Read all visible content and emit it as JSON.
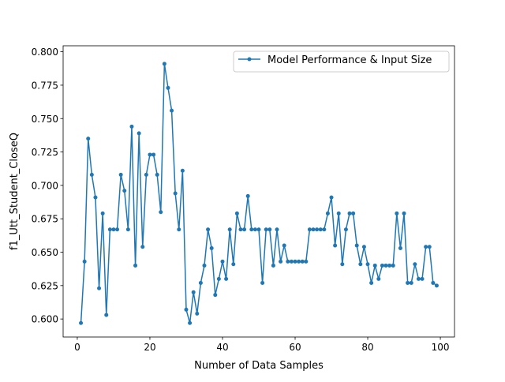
{
  "chart_data": {
    "type": "line",
    "title": "",
    "xlabel": "Number of Data Samples",
    "ylabel": "f1_Utt_Student_CloseQ",
    "xlim": [
      -3.9,
      103.9
    ],
    "ylim": [
      0.5865,
      0.8045
    ],
    "xticks": [
      0,
      20,
      40,
      60,
      80,
      100
    ],
    "xtick_labels": [
      "0",
      "20",
      "40",
      "60",
      "80",
      "100"
    ],
    "yticks": [
      0.6,
      0.625,
      0.65,
      0.675,
      0.7,
      0.725,
      0.75,
      0.775,
      0.8
    ],
    "ytick_labels": [
      "0.600",
      "0.625",
      "0.650",
      "0.675",
      "0.700",
      "0.725",
      "0.750",
      "0.775",
      "0.800"
    ],
    "grid": false,
    "legend_position": "top-right",
    "colors": {
      "series": "#1f77b4"
    },
    "series": [
      {
        "name": "Model Performance & Input Size",
        "x": [
          1,
          2,
          3,
          4,
          5,
          6,
          7,
          8,
          9,
          10,
          11,
          12,
          13,
          14,
          15,
          16,
          17,
          18,
          19,
          20,
          21,
          22,
          23,
          24,
          25,
          26,
          27,
          28,
          29,
          30,
          31,
          32,
          33,
          34,
          35,
          36,
          37,
          38,
          39,
          40,
          41,
          42,
          43,
          44,
          45,
          46,
          47,
          48,
          49,
          50,
          51,
          52,
          53,
          54,
          55,
          56,
          57,
          58,
          59,
          60,
          61,
          62,
          63,
          64,
          65,
          66,
          67,
          68,
          69,
          70,
          71,
          72,
          73,
          74,
          75,
          76,
          77,
          78,
          79,
          80,
          81,
          82,
          83,
          84,
          85,
          86,
          87,
          88,
          89,
          90,
          91,
          92,
          93,
          94,
          95,
          96,
          97,
          98,
          99
        ],
        "values": [
          0.597,
          0.643,
          0.735,
          0.708,
          0.691,
          0.623,
          0.679,
          0.603,
          0.667,
          0.667,
          0.667,
          0.708,
          0.696,
          0.667,
          0.744,
          0.64,
          0.739,
          0.654,
          0.708,
          0.723,
          0.723,
          0.708,
          0.68,
          0.791,
          0.773,
          0.756,
          0.694,
          0.667,
          0.711,
          0.607,
          0.597,
          0.62,
          0.604,
          0.627,
          0.64,
          0.667,
          0.653,
          0.618,
          0.63,
          0.643,
          0.63,
          0.667,
          0.641,
          0.679,
          0.667,
          0.667,
          0.692,
          0.667,
          0.667,
          0.667,
          0.627,
          0.667,
          0.667,
          0.64,
          0.667,
          0.643,
          0.655,
          0.643,
          0.643,
          0.643,
          0.643,
          0.643,
          0.643,
          0.667,
          0.667,
          0.667,
          0.667,
          0.667,
          0.679,
          0.691,
          0.655,
          0.679,
          0.641,
          0.667,
          0.679,
          0.679,
          0.655,
          0.641,
          0.654,
          0.641,
          0.627,
          0.64,
          0.63,
          0.64,
          0.64,
          0.64,
          0.64,
          0.679,
          0.653,
          0.679,
          0.627,
          0.627,
          0.641,
          0.63,
          0.63,
          0.654,
          0.654,
          0.627,
          0.625
        ]
      }
    ]
  }
}
